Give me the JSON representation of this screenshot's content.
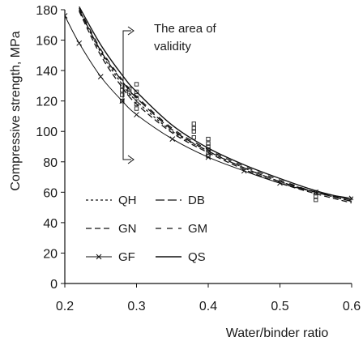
{
  "chart_data": {
    "type": "line",
    "xlabel": "Water/binder ratio",
    "ylabel": "Compressive strength, MPa",
    "xlim": [
      0.2,
      0.6
    ],
    "ylim": [
      0,
      180
    ],
    "xticks": [
      "0.2",
      "0.3",
      "0.4",
      "0.5",
      "0.6"
    ],
    "yticks": [
      "0",
      "20",
      "40",
      "60",
      "80",
      "100",
      "120",
      "140",
      "160",
      "180"
    ],
    "grid": false,
    "legend_placement": "bottom-left",
    "annotation": {
      "lines": [
        "The area of",
        "validity"
      ],
      "x_from": 0.28,
      "y_top": 166,
      "y_bottom": 80
    },
    "series": [
      {
        "name": "QH",
        "style": "dotted",
        "x": [
          0.22,
          0.25,
          0.28,
          0.3,
          0.35,
          0.4,
          0.45,
          0.5,
          0.55,
          0.6
        ],
        "y": [
          180,
          152,
          131,
          120,
          100,
          87,
          76,
          67,
          60,
          54
        ]
      },
      {
        "name": "DB",
        "style": "long-dash",
        "x": [
          0.22,
          0.25,
          0.28,
          0.3,
          0.35,
          0.4,
          0.45,
          0.5,
          0.55,
          0.6
        ],
        "y": [
          180,
          153,
          133,
          122,
          101,
          87,
          76,
          67,
          60,
          54
        ]
      },
      {
        "name": "GN",
        "style": "dash",
        "x": [
          0.22,
          0.25,
          0.28,
          0.3,
          0.35,
          0.4,
          0.45,
          0.5,
          0.55,
          0.6
        ],
        "y": [
          179,
          150,
          129,
          118,
          99,
          86,
          75,
          66,
          59,
          53
        ]
      },
      {
        "name": "GM",
        "style": "dash-gap",
        "x": [
          0.22,
          0.25,
          0.28,
          0.3,
          0.35,
          0.4,
          0.45,
          0.5,
          0.55,
          0.6
        ],
        "y": [
          181,
          154,
          134,
          123,
          102,
          88,
          77,
          68,
          60,
          55
        ]
      },
      {
        "name": "GF",
        "style": "line-x",
        "x": [
          0.2,
          0.22,
          0.25,
          0.28,
          0.3,
          0.35,
          0.4,
          0.45,
          0.5,
          0.55,
          0.6
        ],
        "y": [
          176,
          158,
          136,
          120,
          111,
          95,
          83,
          74,
          66,
          60,
          56
        ]
      },
      {
        "name": "QS",
        "style": "solid",
        "x": [
          0.22,
          0.25,
          0.28,
          0.3,
          0.35,
          0.4,
          0.45,
          0.5,
          0.55,
          0.6
        ],
        "y": [
          182,
          157,
          137,
          126,
          104,
          89,
          78,
          69,
          61,
          55
        ]
      }
    ],
    "experimental_points": {
      "x": [
        0.28,
        0.28,
        0.28,
        0.28,
        0.29,
        0.29,
        0.3,
        0.3,
        0.3,
        0.3,
        0.3,
        0.38,
        0.38,
        0.38,
        0.38,
        0.4,
        0.4,
        0.4,
        0.4,
        0.4,
        0.4,
        0.55,
        0.55,
        0.55
      ],
      "y": [
        130,
        127,
        124,
        120,
        128,
        125,
        131,
        126,
        122,
        118,
        115,
        105,
        102,
        100,
        96,
        95,
        92,
        90,
        88,
        86,
        84,
        60,
        57,
        55
      ]
    }
  }
}
